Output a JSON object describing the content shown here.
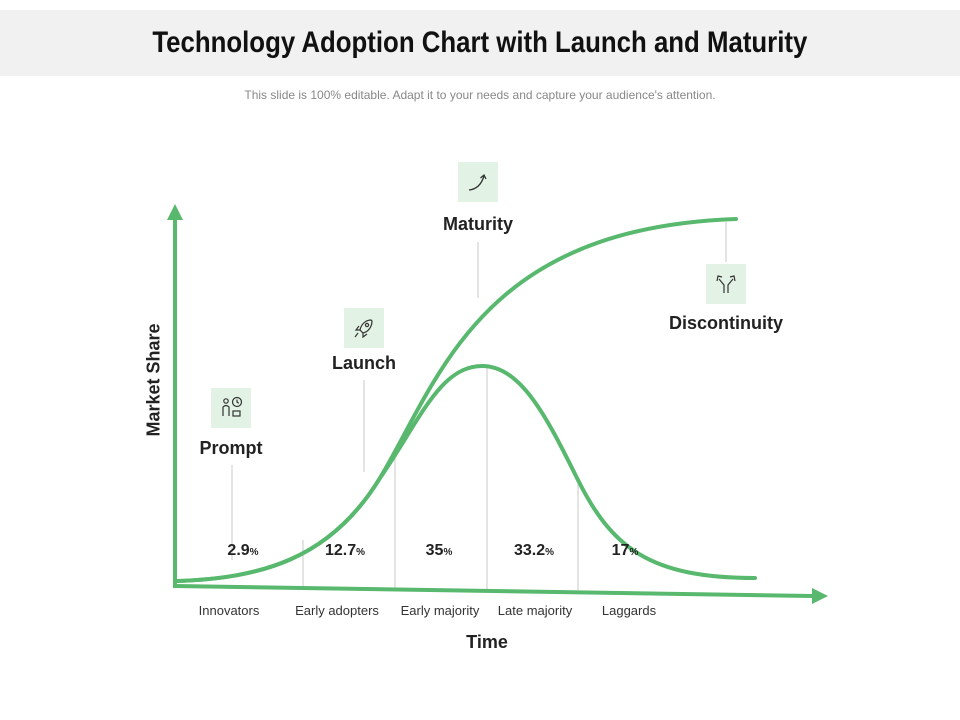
{
  "header": {
    "title": "Technology Adoption Chart with Launch and Maturity",
    "subtitle": "This slide is 100% editable. Adapt it to your needs and capture your audience's attention."
  },
  "axes": {
    "y_label": "Market Share",
    "x_label": "Time"
  },
  "milestones": [
    {
      "label": "Prompt",
      "icon": "person-clock-icon"
    },
    {
      "label": "Launch",
      "icon": "rocket-icon"
    },
    {
      "label": "Maturity",
      "icon": "growth-arrow-icon"
    },
    {
      "label": "Discontinuity",
      "icon": "diverging-arrows-icon"
    }
  ],
  "segments": [
    {
      "category": "Innovators",
      "value": "2.9",
      "unit": "%"
    },
    {
      "category": "Early adopters",
      "value": "12.7",
      "unit": "%"
    },
    {
      "category": "Early majority",
      "value": "35",
      "unit": "%"
    },
    {
      "category": "Late majority",
      "value": "33.2",
      "unit": "%"
    },
    {
      "category": "Laggards",
      "value": "17",
      "unit": "%"
    }
  ],
  "colors": {
    "accent": "#58b86e",
    "icon_bg": "#e2f2e4",
    "guide": "#c8c8c8"
  }
}
